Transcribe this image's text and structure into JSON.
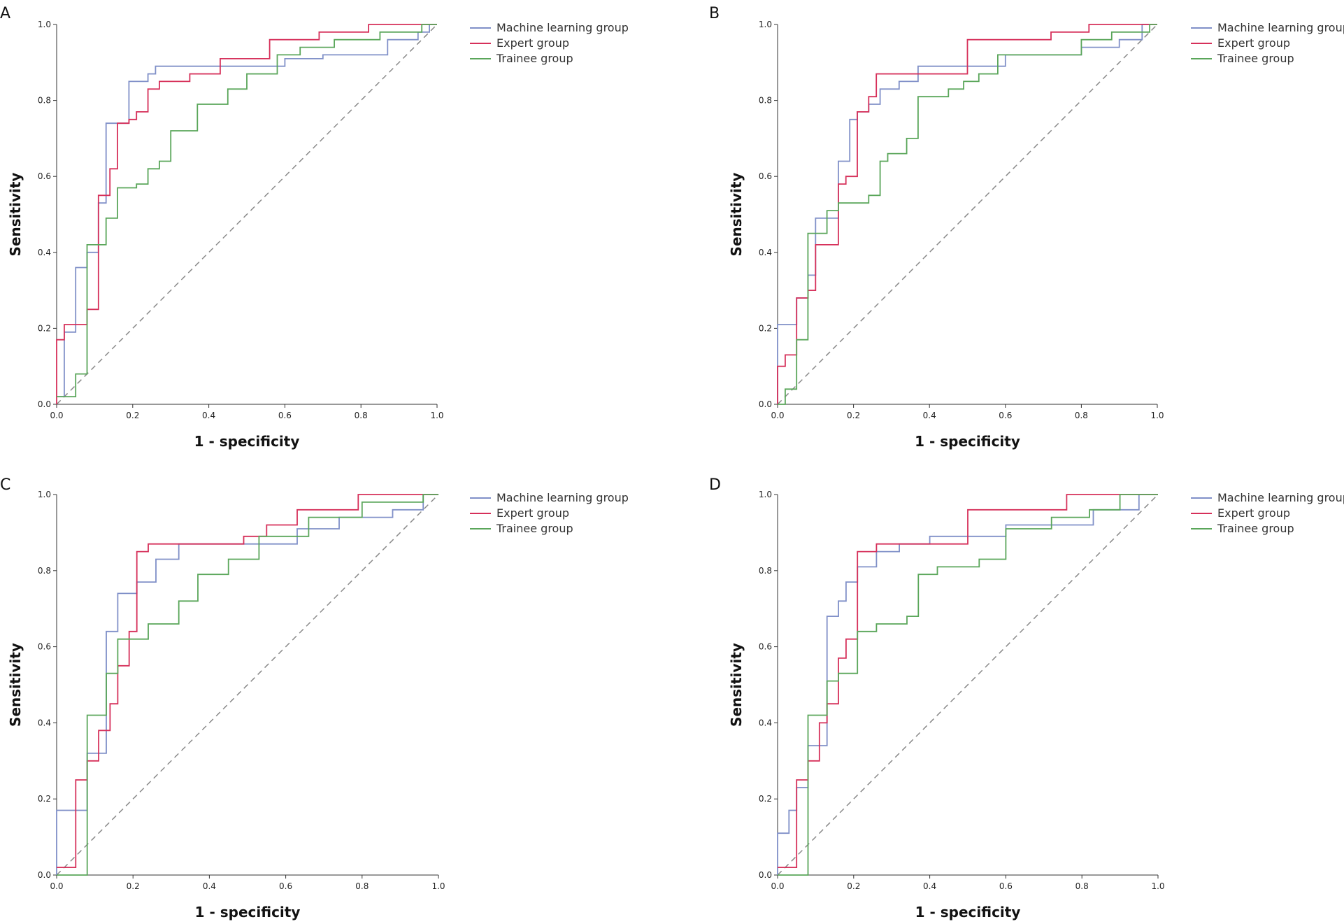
{
  "chart_data": [
    {
      "panel": "A",
      "type": "line",
      "title": "",
      "xlabel": "1 - specificity",
      "ylabel": "Sensitivity",
      "xlim": [
        0,
        1
      ],
      "ylim": [
        0,
        1
      ],
      "xticks": [
        "0.0",
        "0.2",
        "0.4",
        "0.6",
        "0.8",
        "1.0"
      ],
      "yticks": [
        "0.0",
        "0.2",
        "0.4",
        "0.6",
        "0.8",
        "1.0"
      ],
      "legend": [
        "Machine learning group",
        "Expert group",
        "Trainee group"
      ],
      "series": [
        {
          "name": "Machine learning group",
          "color": "#8090c8",
          "x": [
            0,
            0.02,
            0.02,
            0.05,
            0.05,
            0.08,
            0.08,
            0.11,
            0.11,
            0.13,
            0.13,
            0.19,
            0.19,
            0.24,
            0.24,
            0.26,
            0.26,
            0.6,
            0.6,
            0.7,
            0.7,
            0.87,
            0.87,
            0.95,
            0.95,
            0.98,
            0.98,
            1.0
          ],
          "y": [
            0.02,
            0.02,
            0.19,
            0.19,
            0.36,
            0.36,
            0.4,
            0.4,
            0.53,
            0.53,
            0.74,
            0.74,
            0.85,
            0.85,
            0.87,
            0.87,
            0.89,
            0.89,
            0.91,
            0.91,
            0.92,
            0.92,
            0.96,
            0.96,
            0.98,
            0.98,
            1.0,
            1.0
          ]
        },
        {
          "name": "Expert group",
          "color": "#d6305a",
          "x": [
            0,
            0,
            0.02,
            0.02,
            0.08,
            0.08,
            0.11,
            0.11,
            0.14,
            0.14,
            0.16,
            0.16,
            0.19,
            0.19,
            0.21,
            0.21,
            0.24,
            0.24,
            0.27,
            0.27,
            0.35,
            0.35,
            0.43,
            0.43,
            0.56,
            0.56,
            0.69,
            0.69,
            0.82,
            0.82,
            1.0
          ],
          "y": [
            0,
            0.17,
            0.17,
            0.21,
            0.21,
            0.25,
            0.25,
            0.55,
            0.55,
            0.62,
            0.62,
            0.74,
            0.74,
            0.75,
            0.75,
            0.77,
            0.77,
            0.83,
            0.83,
            0.85,
            0.85,
            0.87,
            0.87,
            0.91,
            0.91,
            0.96,
            0.96,
            0.98,
            0.98,
            1.0,
            1.0
          ]
        },
        {
          "name": "Trainee group",
          "color": "#5aa65a",
          "x": [
            0,
            0.05,
            0.05,
            0.08,
            0.08,
            0.13,
            0.13,
            0.16,
            0.16,
            0.21,
            0.21,
            0.24,
            0.24,
            0.27,
            0.27,
            0.3,
            0.3,
            0.37,
            0.37,
            0.45,
            0.45,
            0.5,
            0.5,
            0.58,
            0.58,
            0.64,
            0.64,
            0.73,
            0.73,
            0.85,
            0.85,
            0.96,
            0.96,
            1.0
          ],
          "y": [
            0.02,
            0.02,
            0.08,
            0.08,
            0.42,
            0.42,
            0.49,
            0.49,
            0.57,
            0.57,
            0.58,
            0.58,
            0.62,
            0.62,
            0.64,
            0.64,
            0.72,
            0.72,
            0.79,
            0.79,
            0.83,
            0.83,
            0.87,
            0.87,
            0.92,
            0.92,
            0.94,
            0.94,
            0.96,
            0.96,
            0.98,
            0.98,
            1.0,
            1.0
          ]
        }
      ]
    },
    {
      "panel": "B",
      "type": "line",
      "title": "",
      "xlabel": "1 - specificity",
      "ylabel": "Sensitivity",
      "xlim": [
        0,
        1
      ],
      "ylim": [
        0,
        1
      ],
      "xticks": [
        "0.0",
        "0.2",
        "0.4",
        "0.6",
        "0.8",
        "1.0"
      ],
      "yticks": [
        "0.0",
        "0.2",
        "0.4",
        "0.6",
        "0.8",
        "1.0"
      ],
      "legend": [
        "Machine learning group",
        "Expert group",
        "Trainee group"
      ],
      "series": [
        {
          "name": "Machine learning group",
          "color": "#8090c8",
          "x": [
            0,
            0,
            0.05,
            0.05,
            0.08,
            0.08,
            0.1,
            0.1,
            0.16,
            0.16,
            0.19,
            0.19,
            0.21,
            0.21,
            0.24,
            0.24,
            0.27,
            0.27,
            0.32,
            0.32,
            0.37,
            0.37,
            0.6,
            0.6,
            0.8,
            0.8,
            0.9,
            0.9,
            0.96,
            0.96,
            1.0
          ],
          "y": [
            0,
            0.21,
            0.21,
            0.28,
            0.28,
            0.34,
            0.34,
            0.49,
            0.49,
            0.64,
            0.64,
            0.75,
            0.75,
            0.77,
            0.77,
            0.79,
            0.79,
            0.83,
            0.83,
            0.85,
            0.85,
            0.89,
            0.89,
            0.92,
            0.92,
            0.94,
            0.94,
            0.96,
            0.96,
            1.0,
            1.0
          ]
        },
        {
          "name": "Expert group",
          "color": "#d6305a",
          "x": [
            0,
            0,
            0.02,
            0.02,
            0.05,
            0.05,
            0.08,
            0.08,
            0.1,
            0.1,
            0.16,
            0.16,
            0.18,
            0.18,
            0.21,
            0.21,
            0.24,
            0.24,
            0.26,
            0.26,
            0.5,
            0.5,
            0.72,
            0.72,
            0.82,
            0.82,
            1.0
          ],
          "y": [
            0,
            0.1,
            0.1,
            0.13,
            0.13,
            0.28,
            0.28,
            0.3,
            0.3,
            0.42,
            0.42,
            0.58,
            0.58,
            0.6,
            0.6,
            0.77,
            0.77,
            0.81,
            0.81,
            0.87,
            0.87,
            0.96,
            0.96,
            0.98,
            0.98,
            1.0,
            1.0
          ]
        },
        {
          "name": "Trainee group",
          "color": "#5aa65a",
          "x": [
            0,
            0.02,
            0.02,
            0.05,
            0.05,
            0.08,
            0.08,
            0.13,
            0.13,
            0.16,
            0.16,
            0.24,
            0.24,
            0.27,
            0.27,
            0.29,
            0.29,
            0.34,
            0.34,
            0.37,
            0.37,
            0.45,
            0.45,
            0.49,
            0.49,
            0.53,
            0.53,
            0.58,
            0.58,
            0.8,
            0.8,
            0.88,
            0.88,
            0.98,
            0.98,
            1.0
          ],
          "y": [
            0,
            0,
            0.04,
            0.04,
            0.17,
            0.17,
            0.45,
            0.45,
            0.51,
            0.51,
            0.53,
            0.53,
            0.55,
            0.55,
            0.64,
            0.64,
            0.66,
            0.66,
            0.7,
            0.7,
            0.81,
            0.81,
            0.83,
            0.83,
            0.85,
            0.85,
            0.87,
            0.87,
            0.92,
            0.92,
            0.96,
            0.96,
            0.98,
            0.98,
            1.0,
            1.0
          ]
        }
      ]
    },
    {
      "panel": "C",
      "type": "line",
      "title": "",
      "xlabel": "1 - specificity",
      "ylabel": "Sensitivity",
      "xlim": [
        0,
        1
      ],
      "ylim": [
        0,
        1
      ],
      "xticks": [
        "0.0",
        "0.2",
        "0.4",
        "0.6",
        "0.8",
        "1.0"
      ],
      "yticks": [
        "0.0",
        "0.2",
        "0.4",
        "0.6",
        "0.8",
        "1.0"
      ],
      "legend": [
        "Machine learning group",
        "Expert group",
        "Trainee group"
      ],
      "series": [
        {
          "name": "Machine learning group",
          "color": "#8090c8",
          "x": [
            0,
            0,
            0.08,
            0.08,
            0.13,
            0.13,
            0.16,
            0.16,
            0.21,
            0.21,
            0.26,
            0.26,
            0.32,
            0.32,
            0.63,
            0.63,
            0.74,
            0.74,
            0.88,
            0.88,
            0.96,
            0.96,
            1.0
          ],
          "y": [
            0,
            0.17,
            0.17,
            0.32,
            0.32,
            0.64,
            0.64,
            0.74,
            0.74,
            0.77,
            0.77,
            0.83,
            0.83,
            0.87,
            0.87,
            0.91,
            0.91,
            0.94,
            0.94,
            0.96,
            0.96,
            1.0,
            1.0
          ]
        },
        {
          "name": "Expert group",
          "color": "#d6305a",
          "x": [
            0,
            0.05,
            0.05,
            0.08,
            0.08,
            0.11,
            0.11,
            0.14,
            0.14,
            0.16,
            0.16,
            0.19,
            0.19,
            0.21,
            0.21,
            0.24,
            0.24,
            0.49,
            0.49,
            0.55,
            0.55,
            0.63,
            0.63,
            0.79,
            0.79,
            1.0
          ],
          "y": [
            0.02,
            0.02,
            0.25,
            0.25,
            0.3,
            0.3,
            0.38,
            0.38,
            0.45,
            0.45,
            0.55,
            0.55,
            0.64,
            0.64,
            0.85,
            0.85,
            0.87,
            0.87,
            0.89,
            0.89,
            0.92,
            0.92,
            0.96,
            0.96,
            1.0,
            1.0
          ]
        },
        {
          "name": "Trainee group",
          "color": "#5aa65a",
          "x": [
            0,
            0.08,
            0.08,
            0.13,
            0.13,
            0.16,
            0.16,
            0.24,
            0.24,
            0.32,
            0.32,
            0.37,
            0.37,
            0.45,
            0.45,
            0.53,
            0.53,
            0.66,
            0.66,
            0.8,
            0.8,
            0.96,
            0.96,
            1.0
          ],
          "y": [
            0,
            0,
            0.42,
            0.42,
            0.53,
            0.53,
            0.62,
            0.62,
            0.66,
            0.66,
            0.72,
            0.72,
            0.79,
            0.79,
            0.83,
            0.83,
            0.89,
            0.89,
            0.94,
            0.94,
            0.98,
            0.98,
            1.0,
            1.0
          ]
        }
      ]
    },
    {
      "panel": "D",
      "type": "line",
      "title": "",
      "xlabel": "1 - specificity",
      "ylabel": "Sensitivity",
      "xlim": [
        0,
        1
      ],
      "ylim": [
        0,
        1
      ],
      "xticks": [
        "0.0",
        "0.2",
        "0.4",
        "0.6",
        "0.8",
        "1.0"
      ],
      "yticks": [
        "0.0",
        "0.2",
        "0.4",
        "0.6",
        "0.8",
        "1.0"
      ],
      "legend": [
        "Machine learning group",
        "Expert group",
        "Trainee group"
      ],
      "series": [
        {
          "name": "Machine learning group",
          "color": "#8090c8",
          "x": [
            0,
            0,
            0.03,
            0.03,
            0.05,
            0.05,
            0.08,
            0.08,
            0.13,
            0.13,
            0.16,
            0.16,
            0.18,
            0.18,
            0.21,
            0.21,
            0.26,
            0.26,
            0.32,
            0.32,
            0.4,
            0.4,
            0.6,
            0.6,
            0.83,
            0.83,
            0.95,
            0.95,
            1.0
          ],
          "y": [
            0,
            0.11,
            0.11,
            0.17,
            0.17,
            0.23,
            0.23,
            0.34,
            0.34,
            0.68,
            0.68,
            0.72,
            0.72,
            0.77,
            0.77,
            0.81,
            0.81,
            0.85,
            0.85,
            0.87,
            0.87,
            0.89,
            0.89,
            0.92,
            0.92,
            0.96,
            0.96,
            1.0,
            1.0
          ]
        },
        {
          "name": "Expert group",
          "color": "#d6305a",
          "x": [
            0,
            0.05,
            0.05,
            0.08,
            0.08,
            0.11,
            0.11,
            0.13,
            0.13,
            0.16,
            0.16,
            0.18,
            0.18,
            0.21,
            0.21,
            0.26,
            0.26,
            0.5,
            0.5,
            0.76,
            0.76,
            1.0
          ],
          "y": [
            0.02,
            0.02,
            0.25,
            0.25,
            0.3,
            0.3,
            0.4,
            0.4,
            0.45,
            0.45,
            0.57,
            0.57,
            0.62,
            0.62,
            0.85,
            0.85,
            0.87,
            0.87,
            0.96,
            0.96,
            1.0,
            1.0
          ]
        },
        {
          "name": "Trainee group",
          "color": "#5aa65a",
          "x": [
            0,
            0.08,
            0.08,
            0.13,
            0.13,
            0.16,
            0.16,
            0.21,
            0.21,
            0.26,
            0.26,
            0.34,
            0.34,
            0.37,
            0.37,
            0.42,
            0.42,
            0.53,
            0.53,
            0.6,
            0.6,
            0.72,
            0.72,
            0.82,
            0.82,
            0.9,
            0.9,
            1.0
          ],
          "y": [
            0,
            0,
            0.42,
            0.42,
            0.51,
            0.51,
            0.53,
            0.53,
            0.64,
            0.64,
            0.66,
            0.66,
            0.68,
            0.68,
            0.79,
            0.79,
            0.81,
            0.81,
            0.83,
            0.83,
            0.91,
            0.91,
            0.94,
            0.94,
            0.96,
            0.96,
            1.0,
            1.0
          ]
        }
      ]
    }
  ]
}
